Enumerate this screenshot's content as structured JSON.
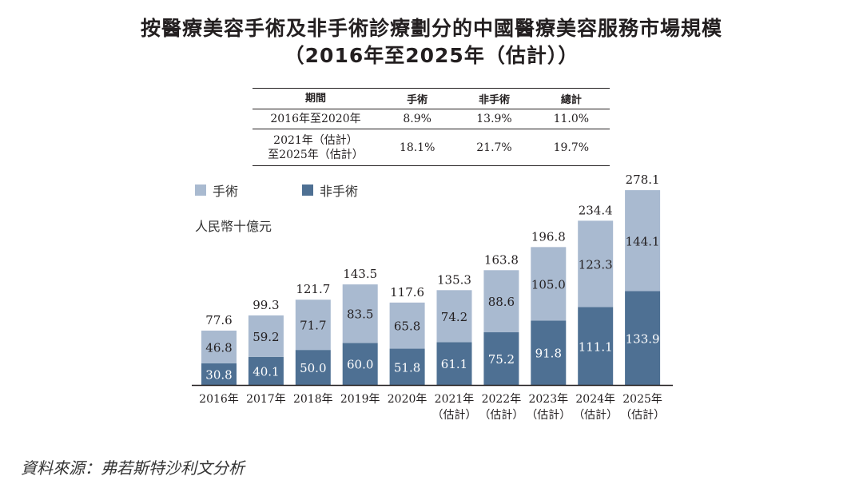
{
  "title_line1": "按醫療美容手術及非手術診療劃分的中國醫療美容服務市場規模",
  "title_line2": "（2016年至2025年（估計））",
  "cagr_table": {
    "headers": [
      "期間",
      "手術",
      "非手術",
      "總計"
    ],
    "rows": [
      {
        "period": "2016年至2020年",
        "surgical": "8.9%",
        "non_surgical": "13.9%",
        "total": "11.0%"
      },
      {
        "period_line1": "2021年（估計）",
        "period_line2": "至2025年（估計）",
        "surgical": "18.1%",
        "non_surgical": "21.7%",
        "total": "19.7%"
      }
    ]
  },
  "legend": [
    {
      "label": "手術",
      "color": "#a9bad0"
    },
    {
      "label": "非手術",
      "color": "#4e7093"
    }
  ],
  "unit_label": "人民幣十億元",
  "source": "資料來源：弗若斯特沙利文分析",
  "chart_data": {
    "type": "bar",
    "stacked": true,
    "title": "按醫療美容手術及非手術診療劃分的中國醫療美容服務市場規模（2016年至2025年（估計））",
    "ylabel": "人民幣十億元",
    "xlabel": "",
    "ylim": [
      0,
      280
    ],
    "grid": false,
    "legend_position": "top-left",
    "categories": [
      "2016年",
      "2017年",
      "2018年",
      "2019年",
      "2020年",
      "2021年",
      "2022年",
      "2023年",
      "2024年",
      "2025年"
    ],
    "category_sublabels": [
      "",
      "",
      "",
      "",
      "",
      "（估計）",
      "（估計）",
      "（估計）",
      "（估計）",
      "（估計）"
    ],
    "series": [
      {
        "name": "非手術",
        "color": "#4e7093",
        "label_color": "#ffffff",
        "values": [
          30.8,
          40.1,
          50.0,
          60.0,
          51.8,
          61.1,
          75.2,
          91.8,
          111.1,
          133.9
        ]
      },
      {
        "name": "手術",
        "color": "#a9bad0",
        "label_color": "#231f20",
        "values": [
          46.8,
          59.2,
          71.7,
          83.5,
          65.8,
          74.2,
          88.6,
          105.0,
          123.3,
          144.1
        ]
      }
    ],
    "totals": [
      77.6,
      99.3,
      121.7,
      143.5,
      117.6,
      135.3,
      163.8,
      196.8,
      234.4,
      278.1
    ]
  }
}
